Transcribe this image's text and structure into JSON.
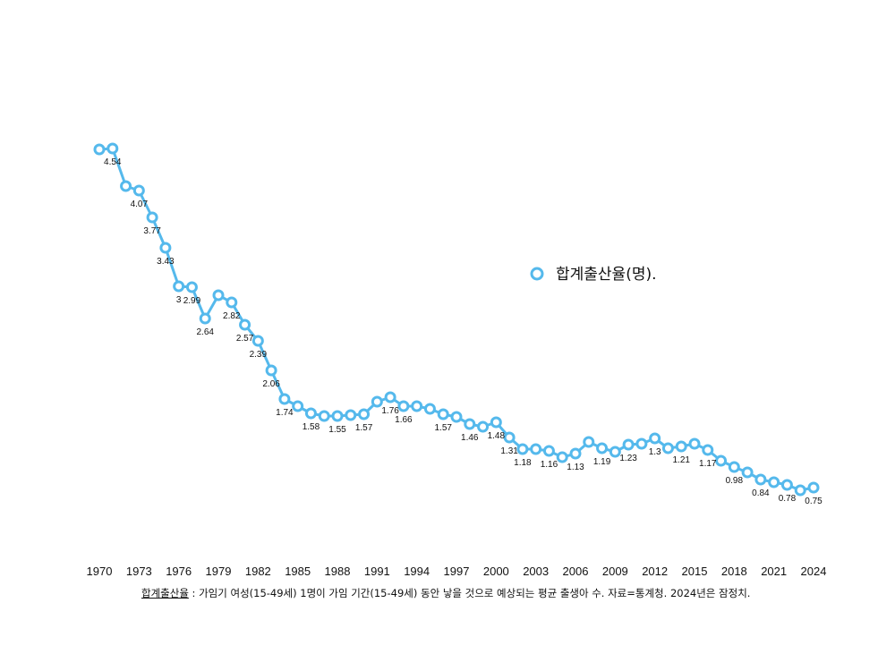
{
  "chart_data": {
    "type": "line",
    "x": [
      1970,
      1971,
      1972,
      1973,
      1974,
      1975,
      1976,
      1977,
      1978,
      1979,
      1980,
      1981,
      1982,
      1983,
      1984,
      1985,
      1986,
      1987,
      1988,
      1989,
      1990,
      1991,
      1992,
      1993,
      1994,
      1995,
      1996,
      1997,
      1998,
      1999,
      2000,
      2001,
      2002,
      2003,
      2004,
      2005,
      2006,
      2007,
      2008,
      2009,
      2010,
      2011,
      2012,
      2013,
      2014,
      2015,
      2016,
      2017,
      2018,
      2019,
      2020,
      2021,
      2022,
      2023,
      2024
    ],
    "series": [
      {
        "name": "합계출산율(명).",
        "values": [
          4.53,
          4.54,
          4.12,
          4.07,
          3.77,
          3.43,
          3.0,
          2.99,
          2.64,
          2.9,
          2.82,
          2.57,
          2.39,
          2.06,
          1.74,
          1.66,
          1.58,
          1.55,
          1.55,
          1.56,
          1.57,
          1.71,
          1.76,
          1.66,
          1.66,
          1.63,
          1.57,
          1.54,
          1.46,
          1.43,
          1.48,
          1.31,
          1.18,
          1.18,
          1.16,
          1.09,
          1.13,
          1.26,
          1.19,
          1.15,
          1.23,
          1.24,
          1.3,
          1.19,
          1.21,
          1.24,
          1.17,
          1.05,
          0.98,
          0.92,
          0.84,
          0.81,
          0.78,
          0.72,
          0.75
        ],
        "color": "#55b9ec"
      }
    ],
    "x_tick_labels": [
      "1970",
      "1973",
      "1976",
      "1979",
      "1982",
      "1985",
      "1988",
      "1991",
      "1994",
      "1997",
      "2000",
      "2003",
      "2006",
      "2009",
      "2012",
      "2015",
      "2018",
      "2021",
      "2024"
    ],
    "data_labels": [
      {
        "x": 1971,
        "text": "4.54"
      },
      {
        "x": 1973,
        "text": "4.07"
      },
      {
        "x": 1974,
        "text": "3.77"
      },
      {
        "x": 1975,
        "text": "3.43"
      },
      {
        "x": 1976,
        "text": "3"
      },
      {
        "x": 1977,
        "text": "2.99"
      },
      {
        "x": 1978,
        "text": "2.64"
      },
      {
        "x": 1980,
        "text": "2.82"
      },
      {
        "x": 1981,
        "text": "2.57"
      },
      {
        "x": 1982,
        "text": "2.39"
      },
      {
        "x": 1983,
        "text": "2.06"
      },
      {
        "x": 1984,
        "text": "1.74"
      },
      {
        "x": 1986,
        "text": "1.58"
      },
      {
        "x": 1988,
        "text": "1.55"
      },
      {
        "x": 1990,
        "text": "1.57"
      },
      {
        "x": 1992,
        "text": "1.76"
      },
      {
        "x": 1993,
        "text": "1.66"
      },
      {
        "x": 1996,
        "text": "1.57"
      },
      {
        "x": 1998,
        "text": "1.46"
      },
      {
        "x": 2000,
        "text": "1.48"
      },
      {
        "x": 2001,
        "text": "1.31"
      },
      {
        "x": 2002,
        "text": "1.18"
      },
      {
        "x": 2004,
        "text": "1.16"
      },
      {
        "x": 2006,
        "text": "1.13"
      },
      {
        "x": 2008,
        "text": "1.19"
      },
      {
        "x": 2010,
        "text": "1.23"
      },
      {
        "x": 2012,
        "text": "1.3"
      },
      {
        "x": 2014,
        "text": "1.21"
      },
      {
        "x": 2016,
        "text": "1.17"
      },
      {
        "x": 2018,
        "text": "0.98"
      },
      {
        "x": 2020,
        "text": "0.84"
      },
      {
        "x": 2022,
        "text": "0.78"
      },
      {
        "x": 2024,
        "text": "0.75"
      }
    ],
    "legend_position": "right",
    "grid": false
  },
  "footnote": {
    "term": "합계출산율",
    "text": " : 가임기 여성(15-49세) 1명이 가임 기간(15-49세) 동안 낳을 것으로 예상되는 평균 출생아 수. 자료=통계청. 2024년은 잠정치."
  }
}
